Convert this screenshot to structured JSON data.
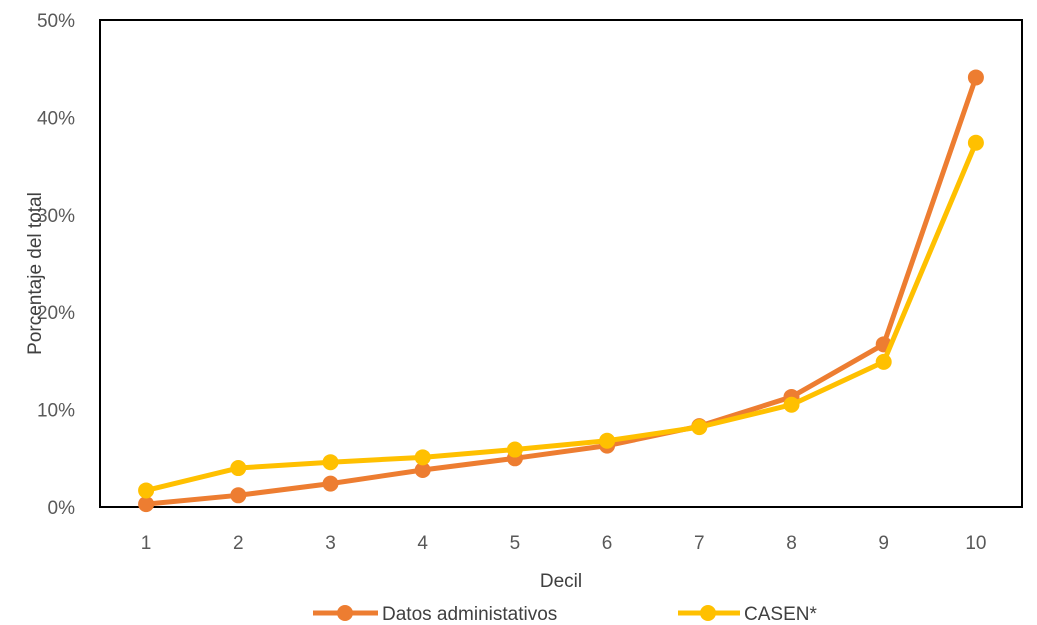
{
  "chart_data": {
    "type": "line",
    "xlabel": "Decil",
    "ylabel": "Porcentaje del total",
    "ylim": [
      0,
      50
    ],
    "y_ticks": [
      "0%",
      "10%",
      "20%",
      "30%",
      "40%",
      "50%"
    ],
    "y_tick_values": [
      0,
      10,
      20,
      30,
      40,
      50
    ],
    "categories": [
      "1",
      "2",
      "3",
      "4",
      "5",
      "6",
      "7",
      "8",
      "9",
      "10"
    ],
    "grid": false,
    "legend_position": "bottom",
    "series": [
      {
        "name": "Datos administativos",
        "color": "#ED7D31",
        "values": [
          0.3,
          1.2,
          2.4,
          3.8,
          5.0,
          6.3,
          8.3,
          11.3,
          16.7,
          44.1
        ]
      },
      {
        "name": "CASEN*",
        "color": "#FFC000",
        "values": [
          1.7,
          4.0,
          4.6,
          5.1,
          5.9,
          6.8,
          8.2,
          10.5,
          14.9,
          37.4
        ]
      }
    ]
  }
}
